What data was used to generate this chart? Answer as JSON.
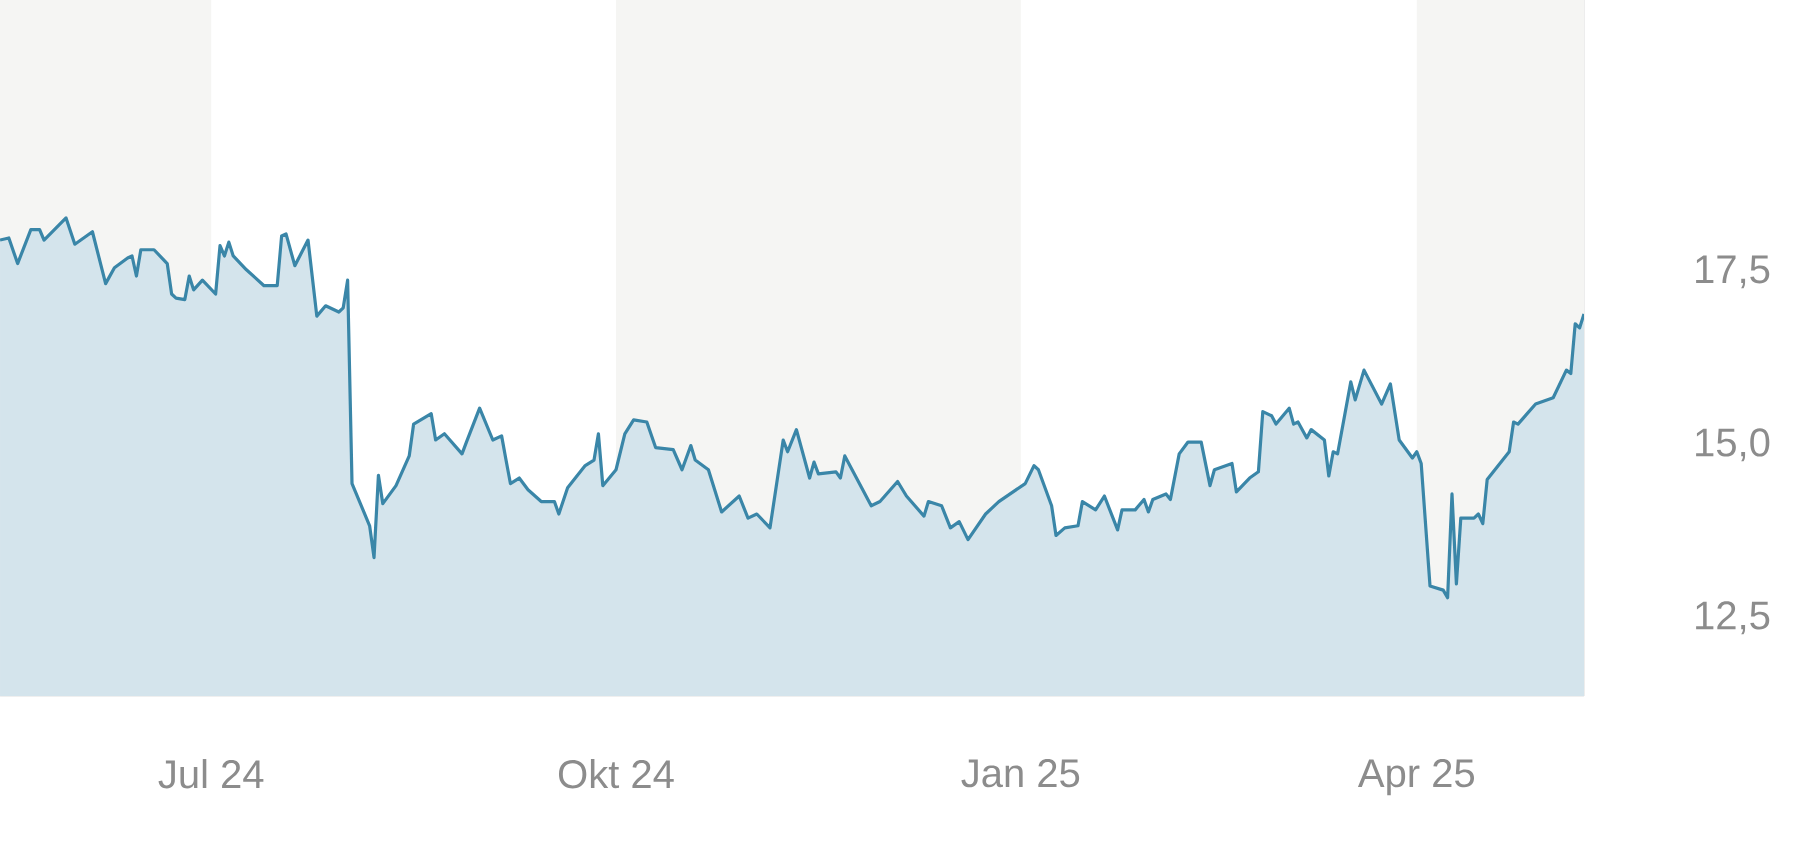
{
  "chart_data": {
    "type": "area",
    "color": "#3a86a8",
    "x": [
      "2024-05-14",
      "2024-05-16",
      "2024-05-18",
      "2024-05-21",
      "2024-05-23",
      "2024-05-24",
      "2024-05-29",
      "2024-05-31",
      "2024-06-04",
      "2024-06-07",
      "2024-06-09",
      "2024-06-12",
      "2024-06-13",
      "2024-06-14",
      "2024-06-15",
      "2024-06-18",
      "2024-06-21",
      "2024-06-22",
      "2024-06-23",
      "2024-06-25",
      "2024-06-26",
      "2024-06-27",
      "2024-06-29",
      "2024-07-02",
      "2024-07-03",
      "2024-07-04",
      "2024-07-05",
      "2024-07-06",
      "2024-07-09",
      "2024-07-13",
      "2024-07-16",
      "2024-07-17",
      "2024-07-18",
      "2024-07-20",
      "2024-07-23",
      "2024-07-25",
      "2024-07-27",
      "2024-07-30",
      "2024-07-31",
      "2024-08-01",
      "2024-08-02",
      "2024-08-06",
      "2024-08-07",
      "2024-08-08",
      "2024-08-09",
      "2024-08-12",
      "2024-08-15",
      "2024-08-16",
      "2024-08-20",
      "2024-08-21",
      "2024-08-23",
      "2024-08-27",
      "2024-08-28",
      "2024-08-31",
      "2024-09-03",
      "2024-09-05",
      "2024-09-06",
      "2024-09-07",
      "2024-09-09",
      "2024-09-11",
      "2024-09-14",
      "2024-09-17",
      "2024-09-18",
      "2024-09-20",
      "2024-09-24",
      "2024-09-26",
      "2024-09-27",
      "2024-09-28",
      "2024-10-01",
      "2024-10-03",
      "2024-10-05",
      "2024-10-08",
      "2024-10-10",
      "2024-10-14",
      "2024-10-16",
      "2024-10-18",
      "2024-10-19",
      "2024-10-22",
      "2024-10-25",
      "2024-10-29",
      "2024-10-31",
      "2024-11-02",
      "2024-11-05",
      "2024-11-08",
      "2024-11-09",
      "2024-11-11",
      "2024-11-14",
      "2024-11-15",
      "2024-11-16",
      "2024-11-20",
      "2024-11-21",
      "2024-11-22",
      "2024-11-28",
      "2024-11-30",
      "2024-12-04",
      "2024-12-06",
      "2024-12-10",
      "2024-12-11",
      "2024-12-14",
      "2024-12-16",
      "2024-12-18",
      "2024-12-20",
      "2024-12-24",
      "2024-12-27",
      "2025-01-02",
      "2025-01-04",
      "2025-01-05",
      "2025-01-08",
      "2025-01-09",
      "2025-01-11",
      "2025-01-14",
      "2025-01-15",
      "2025-01-18",
      "2025-01-20",
      "2025-01-23",
      "2025-01-24",
      "2025-01-27",
      "2025-01-29",
      "2025-01-30",
      "2025-01-31",
      "2025-02-03",
      "2025-02-04",
      "2025-02-06",
      "2025-02-08",
      "2025-02-11",
      "2025-02-13",
      "2025-02-14",
      "2025-02-18",
      "2025-02-19",
      "2025-02-22",
      "2025-02-24",
      "2025-02-25",
      "2025-02-27",
      "2025-02-28",
      "2025-03-03",
      "2025-03-04",
      "2025-03-05",
      "2025-03-07",
      "2025-03-08",
      "2025-03-11",
      "2025-03-12",
      "2025-03-13",
      "2025-03-14",
      "2025-03-17",
      "2025-03-18",
      "2025-03-20",
      "2025-03-24",
      "2025-03-26",
      "2025-03-28",
      "2025-03-31",
      "2025-04-01",
      "2025-04-02",
      "2025-04-04",
      "2025-04-07",
      "2025-04-08",
      "2025-04-09",
      "2025-04-10",
      "2025-04-11",
      "2025-04-14",
      "2025-04-15",
      "2025-04-16",
      "2025-04-17",
      "2025-04-22",
      "2025-04-23",
      "2025-04-24",
      "2025-04-28",
      "2025-05-02",
      "2025-05-05",
      "2025-05-06",
      "2025-05-07",
      "2025-05-08",
      "2025-05-09"
    ],
    "values": [
      17.96,
      17.99,
      17.62,
      18.11,
      18.11,
      17.96,
      18.28,
      17.9,
      18.08,
      17.33,
      17.56,
      17.7,
      17.73,
      17.44,
      17.82,
      17.82,
      17.62,
      17.18,
      17.12,
      17.1,
      17.44,
      17.24,
      17.38,
      17.18,
      17.88,
      17.73,
      17.93,
      17.73,
      17.53,
      17.3,
      17.3,
      18.02,
      18.05,
      17.59,
      17.96,
      16.86,
      17.01,
      16.92,
      16.98,
      17.38,
      14.44,
      13.83,
      13.37,
      14.56,
      14.15,
      14.41,
      14.84,
      15.3,
      15.45,
      15.07,
      15.16,
      14.87,
      15.04,
      15.53,
      15.07,
      15.13,
      14.78,
      14.44,
      14.52,
      14.35,
      14.18,
      14.18,
      14.0,
      14.38,
      14.7,
      14.78,
      15.16,
      14.41,
      14.64,
      15.16,
      15.36,
      15.33,
      14.96,
      14.93,
      14.64,
      14.99,
      14.78,
      14.64,
      14.03,
      14.26,
      13.94,
      14.0,
      13.8,
      15.07,
      14.9,
      15.22,
      14.52,
      14.75,
      14.58,
      14.61,
      14.52,
      14.84,
      14.12,
      14.18,
      14.47,
      14.26,
      13.97,
      14.18,
      14.12,
      13.8,
      13.89,
      13.63,
      14.0,
      14.18,
      14.44,
      14.7,
      14.64,
      14.12,
      13.69,
      13.8,
      13.83,
      14.18,
      14.06,
      14.26,
      13.77,
      14.06,
      14.06,
      14.21,
      14.03,
      14.21,
      14.29,
      14.21,
      14.87,
      15.04,
      15.04,
      14.41,
      14.64,
      14.73,
      14.32,
      14.52,
      14.61,
      15.48,
      15.42,
      15.3,
      15.53,
      15.3,
      15.33,
      15.1,
      15.22,
      15.07,
      14.55,
      14.9,
      14.87,
      15.91,
      15.65,
      16.08,
      15.59,
      15.88,
      15.07,
      14.81,
      14.9,
      14.73,
      12.96,
      12.9,
      12.79,
      14.29,
      12.99,
      13.94,
      13.94,
      14.0,
      13.86,
      14.5,
      14.9,
      15.33,
      15.3,
      15.59,
      15.68,
      16.08,
      16.03,
      16.75,
      16.69,
      16.89
    ],
    "xlim": [
      "2024-05-14",
      "2025-05-09"
    ],
    "ylim": [
      11.37,
      21.43
    ],
    "xticks": [
      {
        "value": "2024-07-01",
        "label": "Jul 24"
      },
      {
        "value": "2024-10-01",
        "label": "Okt 24"
      },
      {
        "value": "2025-01-01",
        "label": "Jan 25"
      },
      {
        "value": "2025-04-01",
        "label": "Apr 25"
      }
    ],
    "yticks": [
      {
        "value": 12.5,
        "label": "12,5"
      },
      {
        "value": 15,
        "label": "15,0"
      },
      {
        "value": 17.5,
        "label": "17,5"
      }
    ],
    "bands": [
      {
        "axis": "x",
        "from": "2024-05-14",
        "to": "2024-07-01",
        "color": "#f5f5f3"
      },
      {
        "axis": "x",
        "from": "2024-10-01",
        "to": "2025-01-01",
        "color": "#f5f5f3"
      },
      {
        "axis": "x",
        "from": "2025-04-01",
        "to": "2025-05-09",
        "color": "#f5f5f3"
      }
    ]
  }
}
